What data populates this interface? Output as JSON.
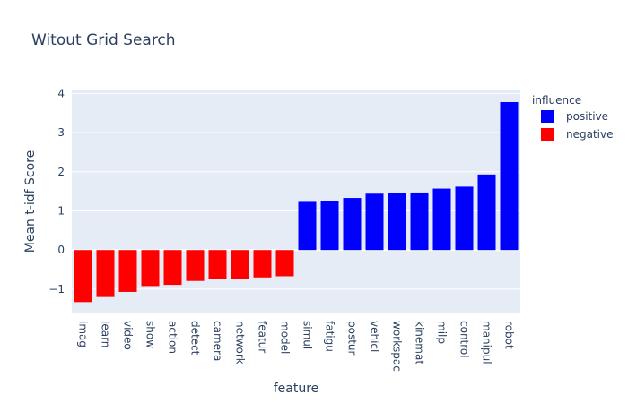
{
  "chart_data": {
    "type": "bar",
    "title": "Witout Grid Search",
    "xlabel": "feature",
    "ylabel": "Mean t-idf Score",
    "ylim": [
      -1.62,
      4.1
    ],
    "yticks": [
      -1,
      0,
      1,
      2,
      3,
      4
    ],
    "grid": true,
    "legend": {
      "title": "influence",
      "placement": "top-right",
      "entries": [
        {
          "name": "positive",
          "color": "#0000ff"
        },
        {
          "name": "negative",
          "color": "#ff0000"
        }
      ]
    },
    "categories": [
      "imag",
      "learn",
      "video",
      "show",
      "action",
      "detect",
      "camera",
      "network",
      "featur",
      "model",
      "simul",
      "fatigu",
      "postur",
      "vehicl",
      "workspac",
      "kinemat",
      "milp",
      "control",
      "manipul",
      "robot"
    ],
    "values": [
      -1.33,
      -1.2,
      -1.07,
      -0.92,
      -0.89,
      -0.79,
      -0.75,
      -0.73,
      -0.7,
      -0.67,
      1.23,
      1.26,
      1.33,
      1.44,
      1.46,
      1.47,
      1.57,
      1.62,
      1.93,
      3.78
    ],
    "colors": {
      "positive": "#0000ff",
      "negative": "#ff0000",
      "plot_bg": "#e5ecf6",
      "grid": "#ffffff",
      "text": "#2a3f5f"
    }
  }
}
